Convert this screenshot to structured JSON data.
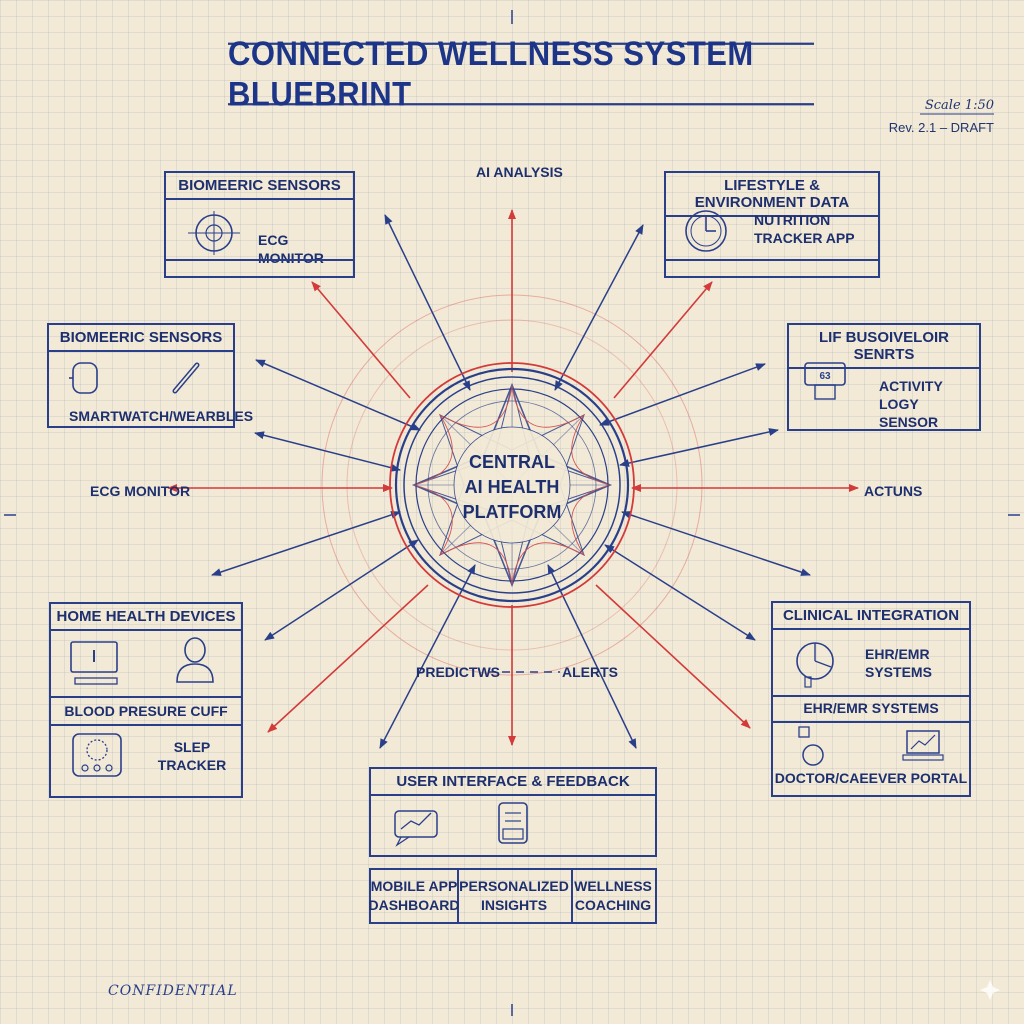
{
  "title": "CONNECTED WELLNESS SYSTEM BLUEBRINT",
  "scale": "Scale 1:50",
  "revision": "Rev. 2.1 – DRAFT",
  "confidential": "CONFIDENTIAL",
  "hub": {
    "lines": [
      "CENTRAL",
      "AI HEALTH",
      "PLATFORM"
    ]
  },
  "labels": {
    "ai_analysis": "AI ANALYSIS",
    "ecg_left": "ECG MONITOR",
    "actions": "ACTUNS",
    "predictions": "PREDICTWS",
    "alerts": "ALERTS"
  },
  "biometric_top": {
    "header": "BIOMEERIC SENSORS",
    "item": "ECG MONITOR"
  },
  "biometric_mid": {
    "header": "BIOMEERIC SENSORS",
    "item": "SMARTWATCH/WEARBLES"
  },
  "lifestyle": {
    "header": "LIFESTYLE & ENVIRONMENT DATA",
    "item_line1": "NUTRITION",
    "item_line2": "TRACKER APP"
  },
  "lif_sensors": {
    "header": "LIF BUSOIVELOIR SENRTS",
    "badge": "63",
    "item_line1": "ACTIVITY LOGY",
    "item_line2": "SENSOR"
  },
  "home": {
    "header": "HOME HEALTH DEVICES",
    "cuff": "BLOOD PRESURE CUFF",
    "sleep_line1": "SLEP",
    "sleep_line2": "TRACKER"
  },
  "clinical": {
    "header": "CLINICAL INTEGRATION",
    "emr_line1": "EHR/EMR",
    "emr_line2": "SYSTEMS",
    "sub_header": "EHR/EMR SYSTEMS",
    "portal": "DOCTOR/CAEEVER PORTAL"
  },
  "ui": {
    "header": "USER INTERFACE & FEEDBACK",
    "cells": [
      {
        "line1": "MOBILE APP",
        "line2": "DASHBOARD"
      },
      {
        "line1": "PERSONALIZED",
        "line2": "INSIGHTS"
      },
      {
        "line1": "WELLNESS",
        "line2": "COACHING"
      }
    ]
  },
  "colors": {
    "ink": "#2a3f8a",
    "red": "#d33a3a",
    "paper": "#f2ead6"
  }
}
